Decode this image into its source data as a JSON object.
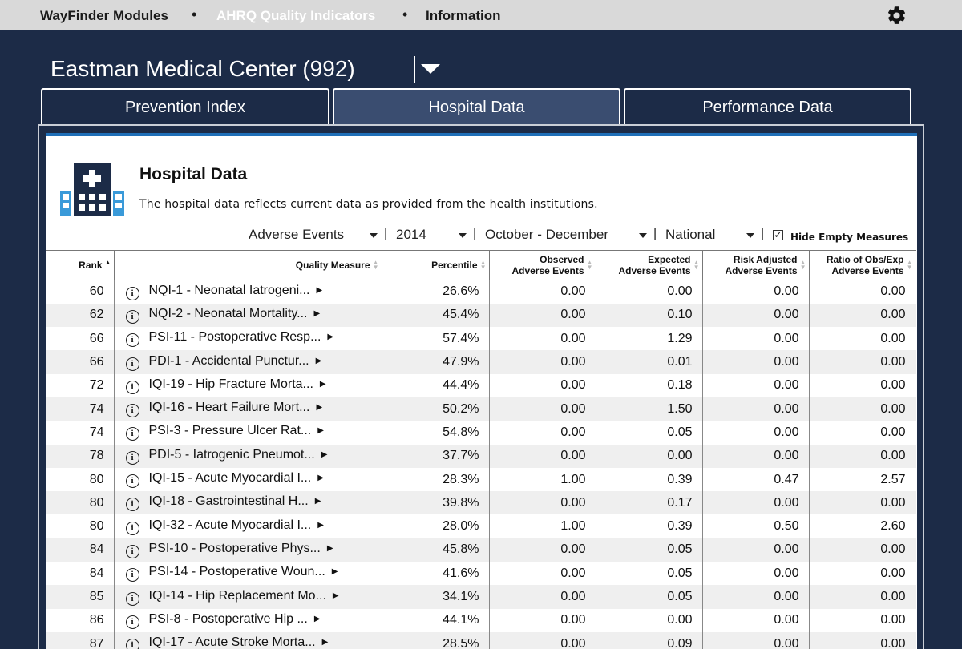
{
  "nav": {
    "module": "WayFinder Modules",
    "quality": "AHRQ Quality Indicators",
    "info": "Information",
    "separator": "•"
  },
  "hospital": {
    "name": "Eastman Medical Center (992)"
  },
  "tabs": [
    {
      "label": "Prevention Index"
    },
    {
      "label": "Hospital Data"
    },
    {
      "label": "Performance Data"
    }
  ],
  "panel": {
    "title": "Hospital Data",
    "description": "The hospital data reflects current data as provided from the health institutions."
  },
  "filters": {
    "category": "Adverse Events",
    "year": "2014",
    "period": "October - December",
    "scope": "National",
    "separator": "|",
    "hide_empty_label": "Hide Empty Measures",
    "hide_empty_checked": "✓"
  },
  "table": {
    "headers": {
      "rank": "Rank",
      "measure": "Quality Measure",
      "percentile": "Percentile",
      "observed_1": "Observed",
      "observed_2": "Adverse Events",
      "expected_1": "Expected",
      "expected_2": "Adverse Events",
      "risk_1": "Risk Adjusted",
      "risk_2": "Adverse Events",
      "ratio_1": "Ratio of Obs/Exp",
      "ratio_2": "Adverse Events"
    },
    "rows": [
      {
        "rank": "60",
        "measure": "NQI-1 - Neonatal Iatrogeni...",
        "percentile": "26.6%",
        "observed": "0.00",
        "expected": "0.00",
        "risk": "0.00",
        "ratio": "0.00"
      },
      {
        "rank": "62",
        "measure": "NQI-2 - Neonatal Mortality...",
        "percentile": "45.4%",
        "observed": "0.00",
        "expected": "0.10",
        "risk": "0.00",
        "ratio": "0.00"
      },
      {
        "rank": "66",
        "measure": "PSI-11 - Postoperative Resp...",
        "percentile": "57.4%",
        "observed": "0.00",
        "expected": "1.29",
        "risk": "0.00",
        "ratio": "0.00"
      },
      {
        "rank": "66",
        "measure": "PDI-1 - Accidental Punctur...",
        "percentile": "47.9%",
        "observed": "0.00",
        "expected": "0.01",
        "risk": "0.00",
        "ratio": "0.00"
      },
      {
        "rank": "72",
        "measure": "IQI-19 - Hip Fracture Morta...",
        "percentile": "44.4%",
        "observed": "0.00",
        "expected": "0.18",
        "risk": "0.00",
        "ratio": "0.00"
      },
      {
        "rank": "74",
        "measure": "IQI-16 - Heart Failure Mort...",
        "percentile": "50.2%",
        "observed": "0.00",
        "expected": "1.50",
        "risk": "0.00",
        "ratio": "0.00"
      },
      {
        "rank": "74",
        "measure": "PSI-3 - Pressure Ulcer Rat...",
        "percentile": "54.8%",
        "observed": "0.00",
        "expected": "0.05",
        "risk": "0.00",
        "ratio": "0.00"
      },
      {
        "rank": "78",
        "measure": "PDI-5 - Iatrogenic Pneumot...",
        "percentile": "37.7%",
        "observed": "0.00",
        "expected": "0.00",
        "risk": "0.00",
        "ratio": "0.00"
      },
      {
        "rank": "80",
        "measure": "IQI-15 - Acute Myocardial I...",
        "percentile": "28.3%",
        "observed": "1.00",
        "expected": "0.39",
        "risk": "0.47",
        "ratio": "2.57"
      },
      {
        "rank": "80",
        "measure": "IQI-18 - Gastrointestinal H...",
        "percentile": "39.8%",
        "observed": "0.00",
        "expected": "0.17",
        "risk": "0.00",
        "ratio": "0.00"
      },
      {
        "rank": "80",
        "measure": "IQI-32 - Acute Myocardial I...",
        "percentile": "28.0%",
        "observed": "1.00",
        "expected": "0.39",
        "risk": "0.50",
        "ratio": "2.60"
      },
      {
        "rank": "84",
        "measure": "PSI-10 - Postoperative Phys...",
        "percentile": "45.8%",
        "observed": "0.00",
        "expected": "0.05",
        "risk": "0.00",
        "ratio": "0.00"
      },
      {
        "rank": "84",
        "measure": "PSI-14 - Postoperative Woun...",
        "percentile": "41.6%",
        "observed": "0.00",
        "expected": "0.05",
        "risk": "0.00",
        "ratio": "0.00"
      },
      {
        "rank": "85",
        "measure": "IQI-14 - Hip Replacement Mo...",
        "percentile": "34.1%",
        "observed": "0.00",
        "expected": "0.05",
        "risk": "0.00",
        "ratio": "0.00"
      },
      {
        "rank": "86",
        "measure": "PSI-8 - Postoperative Hip ...",
        "percentile": "44.1%",
        "observed": "0.00",
        "expected": "0.00",
        "risk": "0.00",
        "ratio": "0.00"
      },
      {
        "rank": "87",
        "measure": "IQI-17 - Acute Stroke Morta...",
        "percentile": "28.5%",
        "observed": "0.00",
        "expected": "0.09",
        "risk": "0.00",
        "ratio": "0.00"
      }
    ]
  },
  "colors": {
    "background": "#1c2b47",
    "active_tab": "#3a4d70",
    "accent_bar": "#1f6fb8",
    "icon_blue": "#3a9ad9",
    "icon_dark": "#1c2b47"
  },
  "icons": {
    "settings": "gear-icon",
    "hospital": "hospital-building-icon",
    "info": "info-icon",
    "expand": "triangle-right-icon"
  }
}
